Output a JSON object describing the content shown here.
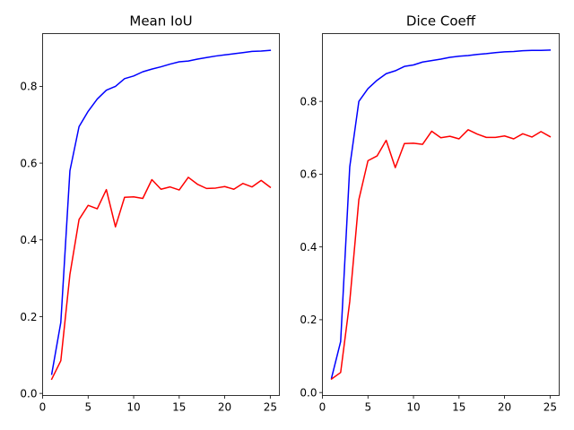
{
  "chart_data": [
    {
      "type": "line",
      "title": "Mean IoU",
      "xlabel": "",
      "ylabel": "",
      "xlim": [
        0,
        26
      ],
      "ylim": [
        -0.0055,
        0.9375
      ],
      "xticks": [
        0,
        5,
        10,
        15,
        20,
        25
      ],
      "yticks": [
        0.0,
        0.2,
        0.4,
        0.6,
        0.8
      ],
      "ytick_labels": [
        "0.0",
        "0.2",
        "0.4",
        "0.6",
        "0.8"
      ],
      "grid": false,
      "x": [
        1,
        2,
        3,
        4,
        5,
        6,
        7,
        8,
        9,
        10,
        11,
        12,
        13,
        14,
        15,
        16,
        17,
        18,
        19,
        20,
        21,
        22,
        23,
        24,
        25
      ],
      "series": [
        {
          "color": "#0000ff",
          "values": [
            0.05,
            0.185,
            0.58,
            0.695,
            0.735,
            0.767,
            0.79,
            0.8,
            0.82,
            0.827,
            0.838,
            0.845,
            0.851,
            0.858,
            0.864,
            0.866,
            0.871,
            0.875,
            0.879,
            0.882,
            0.885,
            0.888,
            0.891,
            0.892,
            0.894
          ]
        },
        {
          "color": "#ff0000",
          "values": [
            0.037,
            0.085,
            0.31,
            0.453,
            0.49,
            0.481,
            0.531,
            0.434,
            0.511,
            0.512,
            0.508,
            0.557,
            0.532,
            0.538,
            0.53,
            0.563,
            0.545,
            0.534,
            0.535,
            0.539,
            0.532,
            0.547,
            0.538,
            0.555,
            0.537
          ]
        }
      ]
    },
    {
      "type": "line",
      "title": "Dice Coeff",
      "xlabel": "",
      "ylabel": "",
      "xlim": [
        0,
        26
      ],
      "ylim": [
        -0.0082,
        0.9862
      ],
      "xticks": [
        0,
        5,
        10,
        15,
        20,
        25
      ],
      "yticks": [
        0.0,
        0.2,
        0.4,
        0.6,
        0.8
      ],
      "ytick_labels": [
        "0.0",
        "0.2",
        "0.4",
        "0.6",
        "0.8"
      ],
      "grid": false,
      "x": [
        1,
        2,
        3,
        4,
        5,
        6,
        7,
        8,
        9,
        10,
        11,
        12,
        13,
        14,
        15,
        16,
        17,
        18,
        19,
        20,
        21,
        22,
        23,
        24,
        25
      ],
      "series": [
        {
          "color": "#0000ff",
          "values": [
            0.04,
            0.14,
            0.62,
            0.8,
            0.835,
            0.858,
            0.876,
            0.884,
            0.896,
            0.9,
            0.908,
            0.912,
            0.916,
            0.921,
            0.924,
            0.926,
            0.929,
            0.931,
            0.934,
            0.936,
            0.937,
            0.939,
            0.94,
            0.94,
            0.941
          ]
        },
        {
          "color": "#ff0000",
          "values": [
            0.037,
            0.055,
            0.25,
            0.53,
            0.637,
            0.65,
            0.693,
            0.618,
            0.684,
            0.685,
            0.682,
            0.718,
            0.7,
            0.704,
            0.697,
            0.722,
            0.71,
            0.701,
            0.701,
            0.705,
            0.697,
            0.711,
            0.702,
            0.717,
            0.703
          ]
        }
      ]
    }
  ]
}
